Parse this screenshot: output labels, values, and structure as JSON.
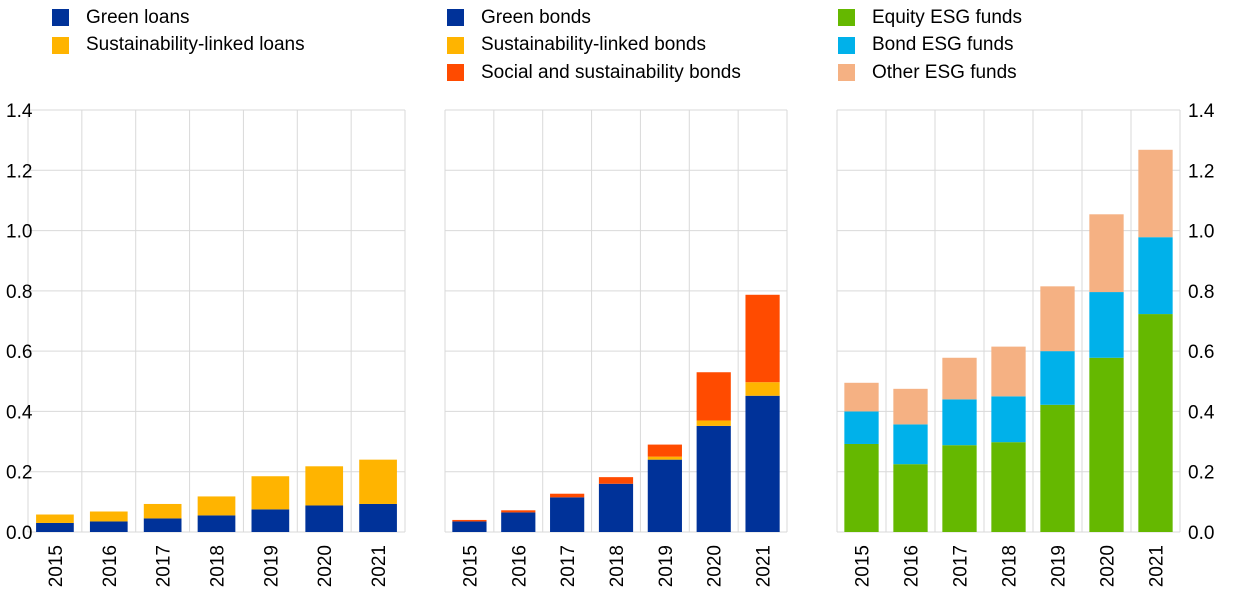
{
  "chart_data": [
    {
      "type": "bar",
      "stacked": true,
      "categories": [
        "2015",
        "2016",
        "2017",
        "2018",
        "2019",
        "2020",
        "2021"
      ],
      "series": [
        {
          "name": "Green loans",
          "color": "#003299",
          "values": [
            0.03,
            0.035,
            0.045,
            0.055,
            0.075,
            0.088,
            0.093
          ]
        },
        {
          "name": "Sustainability-linked loans",
          "color": "#FFB400",
          "values": [
            0.028,
            0.033,
            0.048,
            0.063,
            0.11,
            0.13,
            0.147
          ]
        }
      ],
      "ylim": [
        0,
        1.4
      ],
      "yticks": [
        "0.0",
        "0.2",
        "0.4",
        "0.6",
        "0.8",
        "1.0",
        "1.2",
        "1.4"
      ],
      "yaxis_side": "left",
      "grid": true,
      "legend_placement": "top"
    },
    {
      "type": "bar",
      "stacked": true,
      "categories": [
        "2015",
        "2016",
        "2017",
        "2018",
        "2019",
        "2020",
        "2021"
      ],
      "series": [
        {
          "name": "Green bonds",
          "color": "#003299",
          "values": [
            0.035,
            0.065,
            0.115,
            0.16,
            0.24,
            0.352,
            0.452
          ]
        },
        {
          "name": "Sustainability-linked bonds",
          "color": "#FFB400",
          "values": [
            0.0,
            0.0,
            0.0,
            0.0,
            0.01,
            0.018,
            0.045
          ]
        },
        {
          "name": "Social and sustainability bonds",
          "color": "#FF4B00",
          "values": [
            0.005,
            0.007,
            0.012,
            0.022,
            0.04,
            0.16,
            0.29
          ]
        }
      ],
      "ylim": [
        0,
        1.4
      ],
      "grid": true,
      "legend_placement": "top"
    },
    {
      "type": "bar",
      "stacked": true,
      "categories": [
        "2015",
        "2016",
        "2017",
        "2018",
        "2019",
        "2020",
        "2021"
      ],
      "series": [
        {
          "name": "Equity ESG funds",
          "color": "#65B800",
          "values": [
            0.292,
            0.225,
            0.288,
            0.298,
            0.422,
            0.578,
            0.723
          ]
        },
        {
          "name": "Bond ESG funds",
          "color": "#00B1EA",
          "values": [
            0.108,
            0.132,
            0.152,
            0.152,
            0.178,
            0.218,
            0.255
          ]
        },
        {
          "name": "Other ESG funds",
          "color": "#F5B183",
          "values": [
            0.095,
            0.118,
            0.138,
            0.165,
            0.215,
            0.258,
            0.29
          ]
        }
      ],
      "ylim": [
        0,
        1.4
      ],
      "yticks": [
        "0.0",
        "0.2",
        "0.4",
        "0.6",
        "0.8",
        "1.0",
        "1.2",
        "1.4"
      ],
      "yaxis_side": "right",
      "grid": true,
      "legend_placement": "top"
    }
  ]
}
